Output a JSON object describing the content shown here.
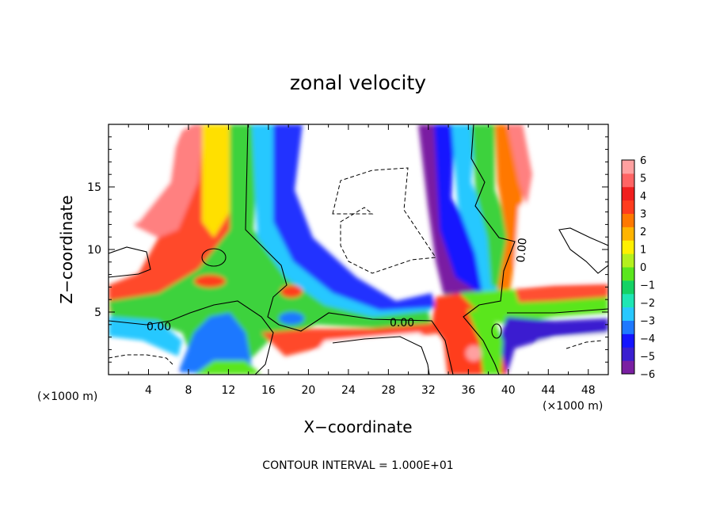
{
  "chart_data": {
    "type": "heatmap",
    "title": "zonal velocity",
    "xlabel": "X−coordinate",
    "ylabel": "Z−coordinate",
    "x_unit_left": "(×1000 m)",
    "x_unit_right": "(×1000 m)",
    "footer": "CONTOUR INTERVAL = 1.000E+01",
    "xlim": [
      0,
      50
    ],
    "ylim": [
      0,
      20
    ],
    "x_ticks": [
      4,
      8,
      12,
      16,
      20,
      24,
      28,
      32,
      36,
      40,
      44,
      48
    ],
    "y_ticks": [
      5,
      10,
      15
    ],
    "contour_labels": [
      "0.00",
      "0.00",
      "0.00"
    ],
    "colorbar": {
      "min": -6,
      "max": 6,
      "tick_labels": [
        "6",
        "5",
        "4",
        "3",
        "2",
        "1",
        "0",
        "−1",
        "−2",
        "−3",
        "−4",
        "−5",
        "−6"
      ],
      "colors": [
        "#7a1fa2",
        "#3a1fd0",
        "#1414ff",
        "#1e78ff",
        "#28c8ff",
        "#1ee6b4",
        "#14d264",
        "#5ae61e",
        "#b4f01e",
        "#fff000",
        "#ffb400",
        "#ff7800",
        "#ff3c1e",
        "#f01e1e",
        "#ff6464",
        "#ffa0a0"
      ]
    }
  }
}
